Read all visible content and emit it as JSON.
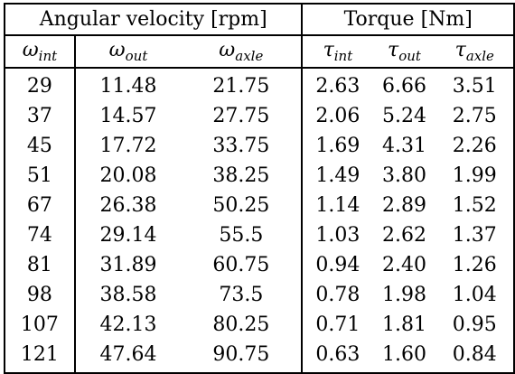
{
  "table": {
    "groups": [
      {
        "label": "Angular velocity [rpm]"
      },
      {
        "label": "Torque [Nm]"
      }
    ],
    "columns": [
      {
        "symbol": "ω",
        "subscript": "int"
      },
      {
        "symbol": "ω",
        "subscript": "out"
      },
      {
        "symbol": "ω",
        "subscript": "axle"
      },
      {
        "symbol": "τ",
        "subscript": "int"
      },
      {
        "symbol": "τ",
        "subscript": "out"
      },
      {
        "symbol": "τ",
        "subscript": "axle"
      }
    ],
    "rows": [
      [
        "29",
        "11.48",
        "21.75",
        "2.63",
        "6.66",
        "3.51"
      ],
      [
        "37",
        "14.57",
        "27.75",
        "2.06",
        "5.24",
        "2.75"
      ],
      [
        "45",
        "17.72",
        "33.75",
        "1.69",
        "4.31",
        "2.26"
      ],
      [
        "51",
        "20.08",
        "38.25",
        "1.49",
        "3.80",
        "1.99"
      ],
      [
        "67",
        "26.38",
        "50.25",
        "1.14",
        "2.89",
        "1.52"
      ],
      [
        "74",
        "29.14",
        "55.5",
        "1.03",
        "2.62",
        "1.37"
      ],
      [
        "81",
        "31.89",
        "60.75",
        "0.94",
        "2.40",
        "1.26"
      ],
      [
        "98",
        "38.58",
        "73.5",
        "0.78",
        "1.98",
        "1.04"
      ],
      [
        "107",
        "42.13",
        "80.25",
        "0.71",
        "1.81",
        "0.95"
      ],
      [
        "121",
        "47.64",
        "90.75",
        "0.63",
        "1.60",
        "0.84"
      ]
    ]
  }
}
